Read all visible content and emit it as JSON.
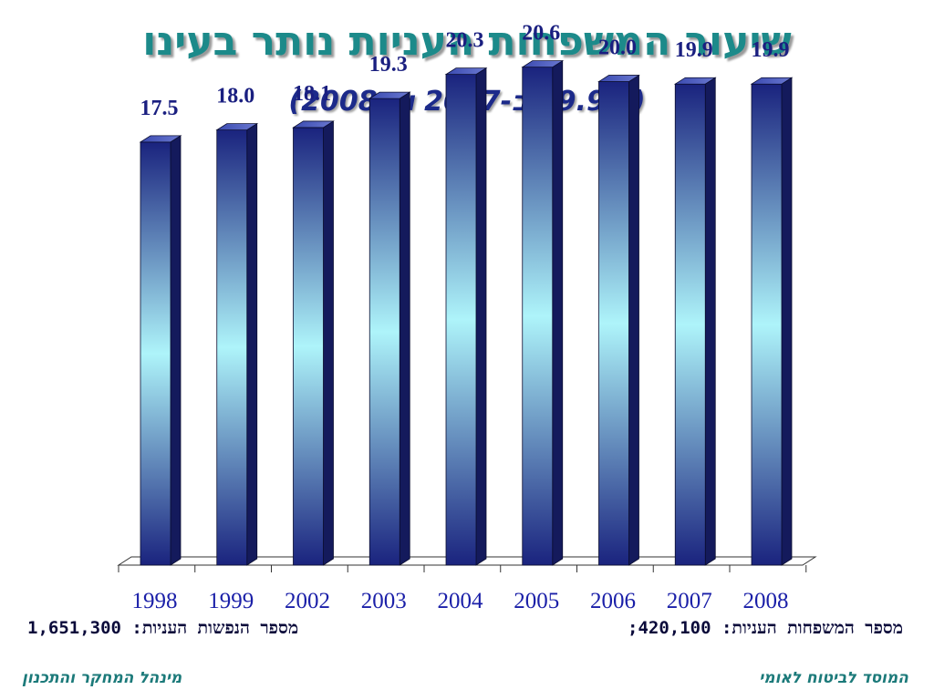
{
  "header": {
    "title": "שיעור המשפחות העניות נותר בעינו",
    "subtitle": "(19.9% ב-2007 וב-2008)"
  },
  "chart_data": {
    "type": "bar",
    "categories": [
      "1998",
      "1999",
      "2002",
      "2003",
      "2004",
      "2005",
      "2006",
      "2007",
      "2008"
    ],
    "values": [
      17.5,
      18.0,
      18.1,
      19.3,
      20.3,
      20.6,
      20.0,
      19.9,
      19.9
    ],
    "value_labels": [
      "17.5",
      "18.0",
      "18.1",
      "19.3",
      "20.3",
      "20.6",
      "20.0",
      "19.9",
      "19.9"
    ],
    "ylim": [
      0,
      23
    ],
    "grid": false,
    "bar_color": "#1a237e",
    "bar_highlight_color": "#aef4fa"
  },
  "notes": {
    "families": "מספר המשפחות העניות: 420,100;",
    "persons": "מספר הנפשות העניות: 1,651,300"
  },
  "footer": {
    "institute": "המוסד לביטוח לאומי",
    "department": "מינהל המחקר והתכנון"
  }
}
